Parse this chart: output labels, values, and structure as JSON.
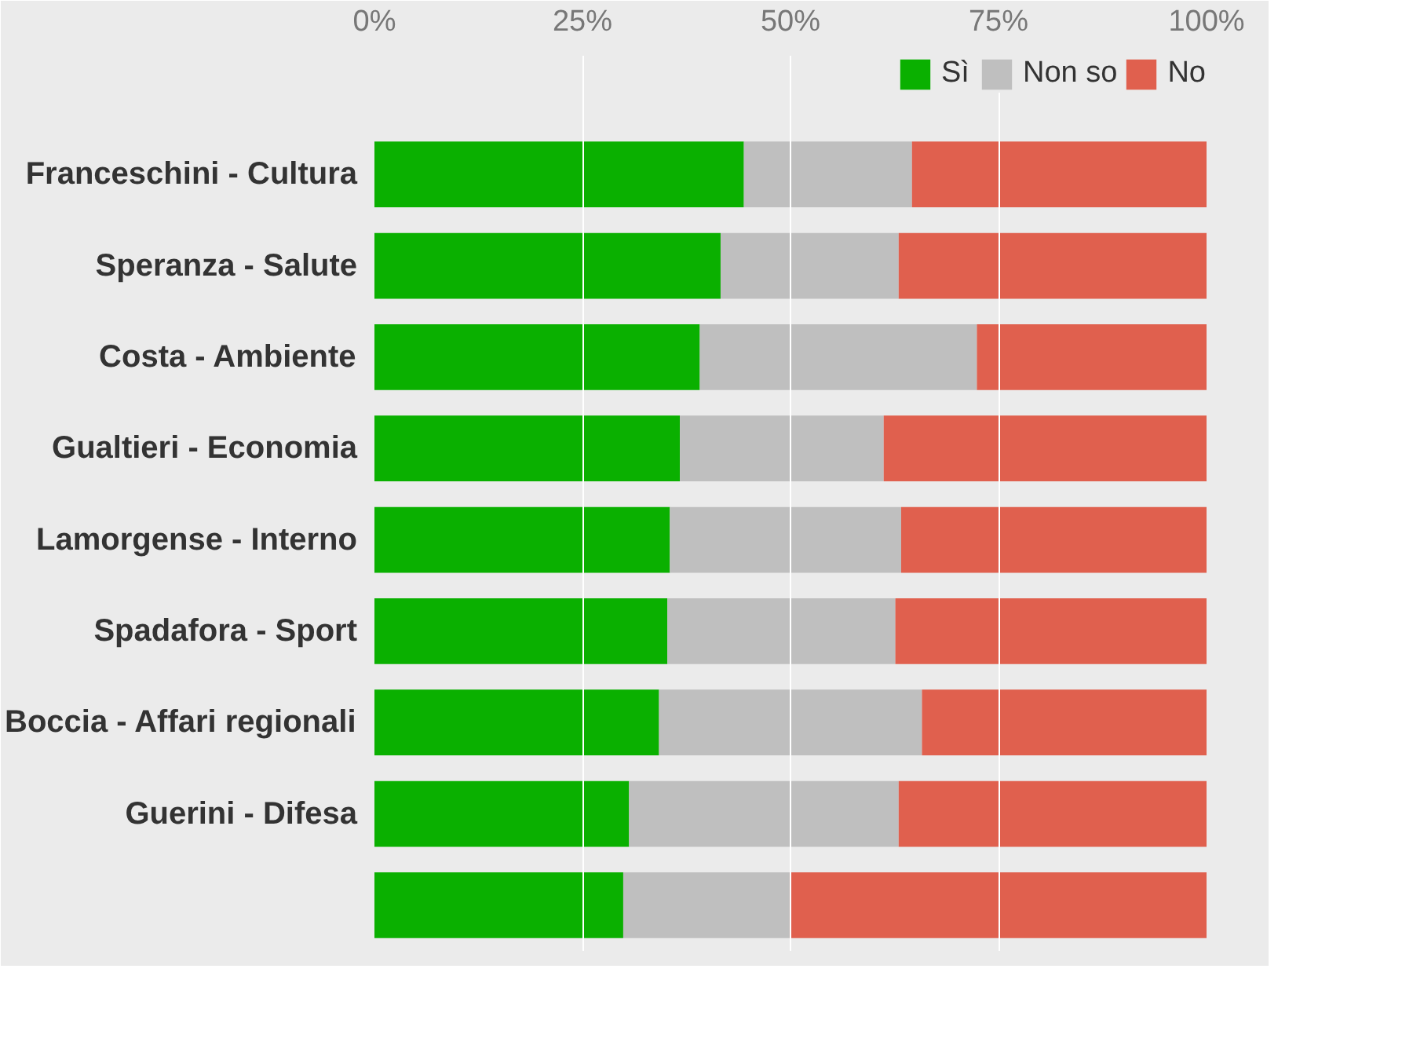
{
  "chart_data": {
    "type": "bar",
    "orientation": "horizontal",
    "stacked": true,
    "categories": [
      "Franceschini - Cultura",
      "Speranza - Salute",
      "Costa - Ambiente",
      "Gualtieri - Economia",
      "Lamorgense - Interno",
      "Spadafora - Sport",
      "Boccia - Affari regionali",
      "Guerini - Difesa",
      null
    ],
    "series": [
      {
        "name": "Sì",
        "color": "#0ab000",
        "values": [
          44.4,
          41.6,
          39.1,
          36.7,
          35.5,
          35.2,
          34.2,
          30.6,
          29.9
        ]
      },
      {
        "name": "Non so",
        "color": "#bfbfbf",
        "values": [
          20.2,
          21.4,
          33.3,
          24.5,
          27.8,
          27.4,
          31.6,
          32.4,
          20.0
        ]
      },
      {
        "name": "No",
        "color": "#e0604e",
        "values": [
          35.4,
          37.0,
          27.6,
          38.8,
          36.7,
          37.4,
          34.2,
          37.0,
          50.1
        ]
      }
    ],
    "xlim": [
      0,
      100
    ],
    "xticks": [
      {
        "value": 0,
        "label": "0%"
      },
      {
        "value": 25,
        "label": "25%"
      },
      {
        "value": 50,
        "label": "50%"
      },
      {
        "value": 75,
        "label": "75%"
      },
      {
        "value": 100,
        "label": "100%"
      }
    ],
    "grid": "x",
    "legend": "top right"
  }
}
